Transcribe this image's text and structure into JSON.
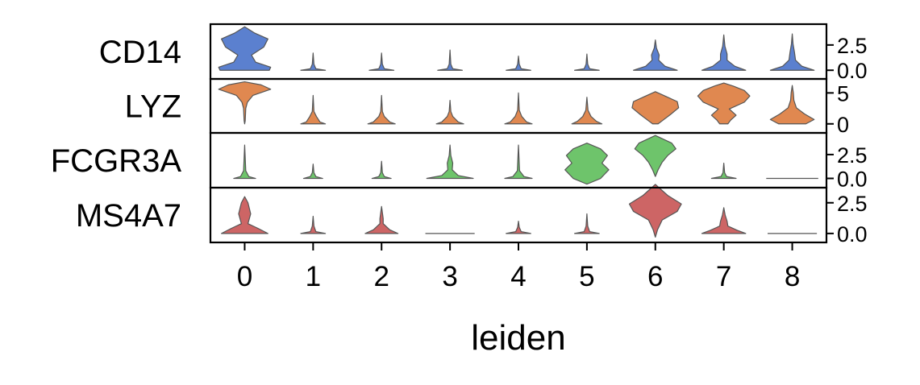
{
  "chart_data": {
    "type": "violin",
    "title": "",
    "xlabel": "leiden",
    "categories": [
      "0",
      "1",
      "2",
      "3",
      "4",
      "5",
      "6",
      "7",
      "8"
    ],
    "genes": [
      {
        "name": "CD14",
        "color": "#5b80cf",
        "ylim": [
          -0.7,
          4.4
        ],
        "yticks": [
          0.0,
          2.5
        ],
        "ytick_labels": [
          "0.0",
          "2.5"
        ],
        "violins": [
          {
            "min": 0,
            "max": 4.3,
            "shape": [
              [
                0,
                0.9
              ],
              [
                0.3,
                0.95
              ],
              [
                0.8,
                0.4
              ],
              [
                1.5,
                0.25
              ],
              [
                2.3,
                0.7
              ],
              [
                3.1,
                0.85
              ],
              [
                3.7,
                0.35
              ],
              [
                4.3,
                0
              ]
            ]
          },
          {
            "min": 0,
            "max": 1.7,
            "shape": [
              [
                0,
                0.45
              ],
              [
                0.15,
                0.1
              ],
              [
                0.6,
                0.03
              ],
              [
                1.7,
                0
              ]
            ]
          },
          {
            "min": 0,
            "max": 1.7,
            "shape": [
              [
                0,
                0.45
              ],
              [
                0.15,
                0.1
              ],
              [
                0.6,
                0.03
              ],
              [
                1.7,
                0
              ]
            ]
          },
          {
            "min": 0,
            "max": 2.0,
            "shape": [
              [
                0,
                0.45
              ],
              [
                0.15,
                0.1
              ],
              [
                0.6,
                0.03
              ],
              [
                2.0,
                0
              ]
            ]
          },
          {
            "min": 0,
            "max": 1.4,
            "shape": [
              [
                0,
                0.45
              ],
              [
                0.15,
                0.1
              ],
              [
                0.6,
                0.03
              ],
              [
                1.4,
                0
              ]
            ]
          },
          {
            "min": 0,
            "max": 1.6,
            "shape": [
              [
                0,
                0.45
              ],
              [
                0.15,
                0.1
              ],
              [
                0.6,
                0.03
              ],
              [
                1.6,
                0
              ]
            ]
          },
          {
            "min": 0,
            "max": 3.0,
            "shape": [
              [
                0,
                0.8
              ],
              [
                0.4,
                0.35
              ],
              [
                1.0,
                0.12
              ],
              [
                1.5,
                0.14
              ],
              [
                2.2,
                0.04
              ],
              [
                3.0,
                0
              ]
            ]
          },
          {
            "min": 0,
            "max": 3.5,
            "shape": [
              [
                0,
                0.8
              ],
              [
                0.4,
                0.4
              ],
              [
                1.0,
                0.12
              ],
              [
                1.6,
                0.12
              ],
              [
                2.4,
                0.04
              ],
              [
                3.5,
                0
              ]
            ]
          },
          {
            "min": 0,
            "max": 3.6,
            "shape": [
              [
                0,
                0.8
              ],
              [
                0.4,
                0.35
              ],
              [
                1.0,
                0.12
              ],
              [
                1.8,
                0.08
              ],
              [
                2.6,
                0.03
              ],
              [
                3.6,
                0
              ]
            ]
          }
        ]
      },
      {
        "name": "LYZ",
        "color": "#e08850",
        "ylim": [
          -1.2,
          7.0
        ],
        "yticks": [
          0,
          5
        ],
        "ytick_labels": [
          "0",
          "5"
        ],
        "violins": [
          {
            "min": 0,
            "max": 6.8,
            "shape": [
              [
                0,
                0
              ],
              [
                0.5,
                0.02
              ],
              [
                2.5,
                0.04
              ],
              [
                3.5,
                0.1
              ],
              [
                4.6,
                0.3
              ],
              [
                5.6,
                0.95
              ],
              [
                6.3,
                0.6
              ],
              [
                6.8,
                0
              ]
            ]
          },
          {
            "min": 0,
            "max": 4.6,
            "shape": [
              [
                0,
                0.45
              ],
              [
                0.3,
                0.25
              ],
              [
                1.2,
                0.12
              ],
              [
                2.0,
                0.03
              ],
              [
                4.6,
                0
              ]
            ]
          },
          {
            "min": 0,
            "max": 4.6,
            "shape": [
              [
                0,
                0.5
              ],
              [
                0.3,
                0.3
              ],
              [
                1.2,
                0.1
              ],
              [
                2.0,
                0.03
              ],
              [
                4.6,
                0
              ]
            ]
          },
          {
            "min": 0,
            "max": 3.8,
            "shape": [
              [
                0,
                0.5
              ],
              [
                0.3,
                0.3
              ],
              [
                1.2,
                0.1
              ],
              [
                2.0,
                0.03
              ],
              [
                3.8,
                0
              ]
            ]
          },
          {
            "min": 0,
            "max": 5.0,
            "shape": [
              [
                0,
                0.5
              ],
              [
                0.3,
                0.3
              ],
              [
                1.2,
                0.12
              ],
              [
                2.2,
                0.03
              ],
              [
                5.0,
                0
              ]
            ]
          },
          {
            "min": 0,
            "max": 4.3,
            "shape": [
              [
                0,
                0.55
              ],
              [
                0.4,
                0.35
              ],
              [
                1.2,
                0.15
              ],
              [
                2.2,
                0.04
              ],
              [
                4.3,
                0
              ]
            ]
          },
          {
            "min": 0,
            "max": 5.2,
            "shape": [
              [
                0,
                0.1
              ],
              [
                0.6,
                0.28
              ],
              [
                1.5,
                0.55
              ],
              [
                2.6,
                0.85
              ],
              [
                3.6,
                0.8
              ],
              [
                4.4,
                0.4
              ],
              [
                5.2,
                0
              ]
            ]
          },
          {
            "min": 0,
            "max": 6.6,
            "shape": [
              [
                0,
                0.15
              ],
              [
                0.6,
                0.25
              ],
              [
                1.4,
                0.45
              ],
              [
                2.4,
                0.2
              ],
              [
                3.5,
                0.75
              ],
              [
                4.5,
                0.95
              ],
              [
                5.4,
                0.75
              ],
              [
                6.1,
                0.35
              ],
              [
                6.6,
                0
              ]
            ]
          },
          {
            "min": 0,
            "max": 6.2,
            "shape": [
              [
                0,
                0.5
              ],
              [
                0.7,
                0.8
              ],
              [
                1.6,
                0.45
              ],
              [
                2.6,
                0.15
              ],
              [
                3.8,
                0.06
              ],
              [
                5.0,
                0.04
              ],
              [
                6.2,
                0
              ]
            ]
          }
        ]
      },
      {
        "name": "FCGR3A",
        "color": "#6ec46b",
        "ylim": [
          -0.8,
          4.6
        ],
        "yticks": [
          0.0,
          2.5
        ],
        "ytick_labels": [
          "0.0",
          "2.5"
        ],
        "violins": [
          {
            "min": 0,
            "max": 3.5,
            "shape": [
              [
                0,
                0.4
              ],
              [
                0.2,
                0.15
              ],
              [
                0.8,
                0.04
              ],
              [
                3.5,
                0
              ]
            ]
          },
          {
            "min": 0,
            "max": 1.5,
            "shape": [
              [
                0,
                0.35
              ],
              [
                0.2,
                0.1
              ],
              [
                0.6,
                0.03
              ],
              [
                1.5,
                0
              ]
            ]
          },
          {
            "min": 0,
            "max": 1.8,
            "shape": [
              [
                0,
                0.35
              ],
              [
                0.2,
                0.1
              ],
              [
                0.6,
                0.03
              ],
              [
                1.8,
                0
              ]
            ]
          },
          {
            "min": 0,
            "max": 3.5,
            "shape": [
              [
                0,
                0.85
              ],
              [
                0.3,
                0.3
              ],
              [
                0.9,
                0.08
              ],
              [
                1.6,
                0.1
              ],
              [
                2.4,
                0.03
              ],
              [
                3.5,
                0
              ]
            ]
          },
          {
            "min": 0,
            "max": 3.5,
            "shape": [
              [
                0,
                0.5
              ],
              [
                0.2,
                0.2
              ],
              [
                0.8,
                0.04
              ],
              [
                3.5,
                0
              ]
            ]
          },
          {
            "min": -0.6,
            "max": 3.7,
            "shape": [
              [
                -0.6,
                0
              ],
              [
                0,
                0.5
              ],
              [
                0.9,
                0.8
              ],
              [
                1.6,
                0.55
              ],
              [
                2.4,
                0.75
              ],
              [
                3.1,
                0.5
              ],
              [
                3.7,
                0
              ]
            ]
          },
          {
            "min": 0.2,
            "max": 4.5,
            "shape": [
              [
                0.2,
                0
              ],
              [
                0.9,
                0.1
              ],
              [
                1.7,
                0.25
              ],
              [
                2.4,
                0.45
              ],
              [
                3.1,
                0.75
              ],
              [
                3.7,
                0.6
              ],
              [
                4.5,
                0
              ]
            ]
          },
          {
            "min": 0,
            "max": 1.6,
            "shape": [
              [
                0,
                0.45
              ],
              [
                0.2,
                0.1
              ],
              [
                0.6,
                0.03
              ],
              [
                1.6,
                0
              ]
            ]
          },
          {
            "min": 0,
            "max": 0,
            "shape": [
              [
                0,
                0.95
              ]
            ]
          }
        ]
      },
      {
        "name": "MS4A7",
        "color": "#cd6565",
        "ylim": [
          -0.6,
          3.6
        ],
        "yticks": [
          0.0,
          2.5
        ],
        "ytick_labels": [
          "0.0",
          "2.5"
        ],
        "violins": [
          {
            "min": 0,
            "max": 3.0,
            "shape": [
              [
                0,
                0.85
              ],
              [
                0.4,
                0.5
              ],
              [
                0.8,
                0.12
              ],
              [
                1.6,
                0.22
              ],
              [
                2.5,
                0.12
              ],
              [
                3.0,
                0
              ]
            ]
          },
          {
            "min": 0,
            "max": 1.4,
            "shape": [
              [
                0,
                0.45
              ],
              [
                0.15,
                0.1
              ],
              [
                0.6,
                0.03
              ],
              [
                1.4,
                0
              ]
            ]
          },
          {
            "min": 0,
            "max": 2.2,
            "shape": [
              [
                0,
                0.6
              ],
              [
                0.3,
                0.3
              ],
              [
                0.8,
                0.06
              ],
              [
                1.2,
                0.06
              ],
              [
                2.2,
                0
              ]
            ]
          },
          {
            "min": 0,
            "max": 0,
            "shape": [
              [
                0,
                0.9
              ]
            ]
          },
          {
            "min": 0,
            "max": 1.0,
            "shape": [
              [
                0,
                0.45
              ],
              [
                0.15,
                0.1
              ],
              [
                0.5,
                0.03
              ],
              [
                1.0,
                0
              ]
            ]
          },
          {
            "min": 0,
            "max": 1.6,
            "shape": [
              [
                0,
                0.45
              ],
              [
                0.15,
                0.1
              ],
              [
                0.6,
                0.03
              ],
              [
                1.6,
                0
              ]
            ]
          },
          {
            "min": -0.3,
            "max": 4.0,
            "shape": [
              [
                -0.3,
                0
              ],
              [
                0.3,
                0.08
              ],
              [
                1.1,
                0.25
              ],
              [
                1.8,
                0.8
              ],
              [
                2.4,
                0.95
              ],
              [
                3.1,
                0.45
              ],
              [
                4.0,
                0
              ]
            ]
          },
          {
            "min": 0,
            "max": 2.1,
            "shape": [
              [
                0,
                0.8
              ],
              [
                0.25,
                0.5
              ],
              [
                0.6,
                0.15
              ],
              [
                1.0,
                0.12
              ],
              [
                1.5,
                0.05
              ],
              [
                2.1,
                0
              ]
            ]
          },
          {
            "min": 0,
            "max": 0,
            "shape": [
              [
                0,
                0.9
              ]
            ]
          }
        ]
      }
    ],
    "grid": false,
    "legend": "none"
  }
}
